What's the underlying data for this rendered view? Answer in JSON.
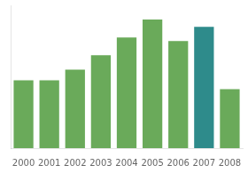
{
  "chart_data": {
    "type": "bar",
    "categories": [
      "2000",
      "2001",
      "2002",
      "2003",
      "2004",
      "2005",
      "2006",
      "2007",
      "2008"
    ],
    "values": [
      38,
      38,
      44,
      52,
      62,
      72,
      60,
      68,
      33
    ],
    "colors": [
      "#6aaa5a",
      "#6aaa5a",
      "#6aaa5a",
      "#6aaa5a",
      "#6aaa5a",
      "#6aaa5a",
      "#6aaa5a",
      "#2e8b8b",
      "#6aaa5a"
    ],
    "ylim": [
      0,
      80
    ],
    "grid": false,
    "tick_labels": "x"
  }
}
